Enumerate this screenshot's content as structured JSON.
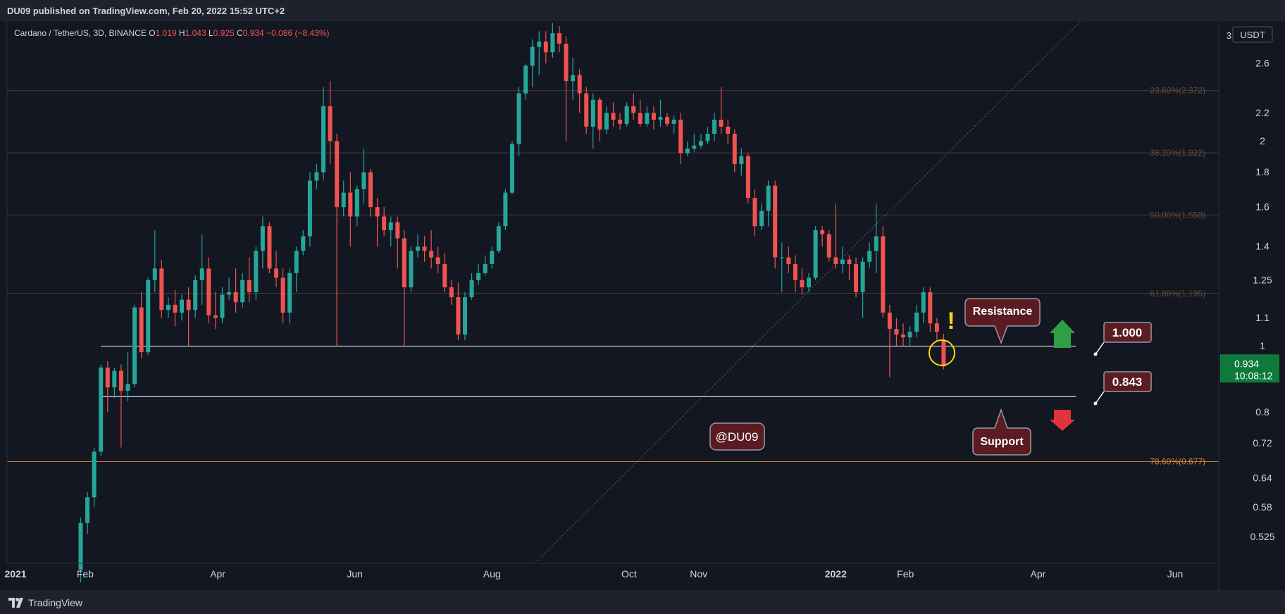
{
  "header": {
    "published": "DU09 published on TradingView.com, Feb 20, 2022 15:52 UTC+2"
  },
  "footer": {
    "brand": "TradingView"
  },
  "legend": {
    "symbol": "Cardano / TetherUS, 3D, BINANCE",
    "o_label": "O",
    "o": "1.019",
    "h_label": "H",
    "h": "1.043",
    "l_label": "L",
    "l": "0.925",
    "c_label": "C",
    "c": "0.934",
    "change": "−0.086 (−8.43%)"
  },
  "price_axis": {
    "unit": "USDT",
    "top_label": "3",
    "current_price": "0.934",
    "countdown": "10:08:12"
  },
  "colors": {
    "up": "#26a69a",
    "down": "#ef5350",
    "fib": "#7a5b3c",
    "fib_strong": "#d4862f",
    "callout_bg": "#5a1c22",
    "price_tag": "#0d7a3c"
  },
  "annotations": {
    "resistance_label": "Resistance",
    "support_label": "Support",
    "watermark": "@DU09",
    "level_1000": "1.000",
    "level_0843": "0.843",
    "exclamation": "!"
  },
  "chart_data": {
    "type": "candlestick",
    "symbol": "ADA/USDT",
    "interval": "3D",
    "y_scale": "log",
    "ylim": [
      0.48,
      3.0
    ],
    "y_ticks": [
      0.525,
      0.58,
      0.64,
      0.72,
      0.8,
      1.0,
      1.1,
      1.25,
      1.4,
      1.6,
      1.8,
      2.0,
      2.2,
      2.6
    ],
    "x_ticks": [
      {
        "label": "2021",
        "date": "2021-01-01"
      },
      {
        "label": "Feb",
        "date": "2021-02-01"
      },
      {
        "label": "Apr",
        "date": "2021-04-01"
      },
      {
        "label": "Jun",
        "date": "2021-06-01"
      },
      {
        "label": "Aug",
        "date": "2021-08-01"
      },
      {
        "label": "Oct",
        "date": "2021-10-01"
      },
      {
        "label": "Nov",
        "date": "2021-11-01"
      },
      {
        "label": "2022",
        "date": "2022-01-01"
      },
      {
        "label": "Feb",
        "date": "2022-02-01"
      },
      {
        "label": "Apr",
        "date": "2022-04-01"
      },
      {
        "label": "Jun",
        "date": "2022-06-01"
      }
    ],
    "fib_levels": [
      {
        "label": "23.60%(2.372)",
        "value": 2.372
      },
      {
        "label": "38.20%(1.922)",
        "value": 1.922
      },
      {
        "label": "50.00%(1.558)",
        "value": 1.558
      },
      {
        "label": "61.80%(1.195)",
        "value": 1.195
      },
      {
        "label": "78.60%(0.677)",
        "value": 0.677
      }
    ],
    "horizontal_levels": [
      {
        "name": "Resistance",
        "value": 1.0
      },
      {
        "name": "Support",
        "value": 0.843
      }
    ],
    "trendline": {
      "start": {
        "date": "2021-08-20",
        "value": 0.48
      },
      "end": {
        "date": "2022-04-20",
        "value": 3.0
      }
    },
    "candles": [
      {
        "d": "2021-01-30",
        "o": 0.47,
        "h": 0.56,
        "l": 0.45,
        "c": 0.55
      },
      {
        "d": "2021-02-02",
        "o": 0.55,
        "h": 0.61,
        "l": 0.53,
        "c": 0.6
      },
      {
        "d": "2021-02-05",
        "o": 0.6,
        "h": 0.71,
        "l": 0.58,
        "c": 0.7
      },
      {
        "d": "2021-02-08",
        "o": 0.7,
        "h": 0.94,
        "l": 0.69,
        "c": 0.93
      },
      {
        "d": "2021-02-11",
        "o": 0.93,
        "h": 0.95,
        "l": 0.8,
        "c": 0.87
      },
      {
        "d": "2021-02-14",
        "o": 0.87,
        "h": 0.93,
        "l": 0.84,
        "c": 0.92
      },
      {
        "d": "2021-02-17",
        "o": 0.92,
        "h": 0.94,
        "l": 0.71,
        "c": 0.86
      },
      {
        "d": "2021-02-20",
        "o": 0.86,
        "h": 0.98,
        "l": 0.83,
        "c": 0.88
      },
      {
        "d": "2021-02-23",
        "o": 0.88,
        "h": 1.15,
        "l": 0.87,
        "c": 1.14
      },
      {
        "d": "2021-02-26",
        "o": 1.14,
        "h": 1.2,
        "l": 0.96,
        "c": 0.98
      },
      {
        "d": "2021-03-01",
        "o": 0.98,
        "h": 1.26,
        "l": 0.97,
        "c": 1.25
      },
      {
        "d": "2021-03-04",
        "o": 1.25,
        "h": 1.48,
        "l": 1.2,
        "c": 1.3
      },
      {
        "d": "2021-03-07",
        "o": 1.3,
        "h": 1.34,
        "l": 1.1,
        "c": 1.13
      },
      {
        "d": "2021-03-10",
        "o": 1.13,
        "h": 1.18,
        "l": 1.1,
        "c": 1.15
      },
      {
        "d": "2021-03-13",
        "o": 1.15,
        "h": 1.21,
        "l": 1.07,
        "c": 1.12
      },
      {
        "d": "2021-03-16",
        "o": 1.12,
        "h": 1.19,
        "l": 1.09,
        "c": 1.17
      },
      {
        "d": "2021-03-19",
        "o": 1.17,
        "h": 1.22,
        "l": 1.0,
        "c": 1.13
      },
      {
        "d": "2021-03-22",
        "o": 1.13,
        "h": 1.27,
        "l": 1.1,
        "c": 1.25
      },
      {
        "d": "2021-03-25",
        "o": 1.25,
        "h": 1.46,
        "l": 1.15,
        "c": 1.3
      },
      {
        "d": "2021-03-28",
        "o": 1.3,
        "h": 1.35,
        "l": 1.08,
        "c": 1.11
      },
      {
        "d": "2021-03-31",
        "o": 1.11,
        "h": 1.2,
        "l": 1.06,
        "c": 1.1
      },
      {
        "d": "2021-04-03",
        "o": 1.1,
        "h": 1.22,
        "l": 1.08,
        "c": 1.19
      },
      {
        "d": "2021-04-06",
        "o": 1.19,
        "h": 1.26,
        "l": 1.17,
        "c": 1.2
      },
      {
        "d": "2021-04-09",
        "o": 1.2,
        "h": 1.3,
        "l": 1.12,
        "c": 1.16
      },
      {
        "d": "2021-04-12",
        "o": 1.16,
        "h": 1.28,
        "l": 1.14,
        "c": 1.25
      },
      {
        "d": "2021-04-15",
        "o": 1.25,
        "h": 1.35,
        "l": 1.16,
        "c": 1.2
      },
      {
        "d": "2021-04-18",
        "o": 1.2,
        "h": 1.4,
        "l": 1.17,
        "c": 1.38
      },
      {
        "d": "2021-04-21",
        "o": 1.38,
        "h": 1.55,
        "l": 1.3,
        "c": 1.5
      },
      {
        "d": "2021-04-24",
        "o": 1.5,
        "h": 1.52,
        "l": 1.28,
        "c": 1.3
      },
      {
        "d": "2021-04-27",
        "o": 1.3,
        "h": 1.38,
        "l": 1.22,
        "c": 1.26
      },
      {
        "d": "2021-04-30",
        "o": 1.26,
        "h": 1.3,
        "l": 1.08,
        "c": 1.12
      },
      {
        "d": "2021-05-03",
        "o": 1.12,
        "h": 1.3,
        "l": 1.08,
        "c": 1.28
      },
      {
        "d": "2021-05-06",
        "o": 1.28,
        "h": 1.4,
        "l": 1.2,
        "c": 1.38
      },
      {
        "d": "2021-05-09",
        "o": 1.38,
        "h": 1.48,
        "l": 1.36,
        "c": 1.45
      },
      {
        "d": "2021-05-12",
        "o": 1.45,
        "h": 1.8,
        "l": 1.4,
        "c": 1.75
      },
      {
        "d": "2021-05-15",
        "o": 1.75,
        "h": 1.85,
        "l": 1.7,
        "c": 1.8
      },
      {
        "d": "2021-05-18",
        "o": 1.8,
        "h": 2.4,
        "l": 1.75,
        "c": 2.25
      },
      {
        "d": "2021-05-21",
        "o": 2.25,
        "h": 2.45,
        "l": 1.85,
        "c": 2.0
      },
      {
        "d": "2021-05-24",
        "o": 2.0,
        "h": 2.05,
        "l": 1.0,
        "c": 1.6
      },
      {
        "d": "2021-05-27",
        "o": 1.6,
        "h": 1.75,
        "l": 1.55,
        "c": 1.68
      },
      {
        "d": "2021-05-30",
        "o": 1.68,
        "h": 1.8,
        "l": 1.4,
        "c": 1.55
      },
      {
        "d": "2021-06-02",
        "o": 1.55,
        "h": 1.72,
        "l": 1.5,
        "c": 1.7
      },
      {
        "d": "2021-06-05",
        "o": 1.7,
        "h": 1.95,
        "l": 1.62,
        "c": 1.8
      },
      {
        "d": "2021-06-08",
        "o": 1.8,
        "h": 1.82,
        "l": 1.55,
        "c": 1.6
      },
      {
        "d": "2021-06-11",
        "o": 1.6,
        "h": 1.65,
        "l": 1.4,
        "c": 1.55
      },
      {
        "d": "2021-06-14",
        "o": 1.55,
        "h": 1.6,
        "l": 1.45,
        "c": 1.48
      },
      {
        "d": "2021-06-17",
        "o": 1.48,
        "h": 1.55,
        "l": 1.4,
        "c": 1.52
      },
      {
        "d": "2021-06-20",
        "o": 1.52,
        "h": 1.55,
        "l": 1.3,
        "c": 1.44
      },
      {
        "d": "2021-06-23",
        "o": 1.44,
        "h": 1.48,
        "l": 1.0,
        "c": 1.22
      },
      {
        "d": "2021-06-26",
        "o": 1.22,
        "h": 1.4,
        "l": 1.2,
        "c": 1.38
      },
      {
        "d": "2021-06-29",
        "o": 1.38,
        "h": 1.46,
        "l": 1.35,
        "c": 1.4
      },
      {
        "d": "2021-07-02",
        "o": 1.4,
        "h": 1.45,
        "l": 1.33,
        "c": 1.38
      },
      {
        "d": "2021-07-05",
        "o": 1.38,
        "h": 1.48,
        "l": 1.3,
        "c": 1.35
      },
      {
        "d": "2021-07-08",
        "o": 1.35,
        "h": 1.4,
        "l": 1.28,
        "c": 1.32
      },
      {
        "d": "2021-07-11",
        "o": 1.32,
        "h": 1.37,
        "l": 1.2,
        "c": 1.22
      },
      {
        "d": "2021-07-14",
        "o": 1.22,
        "h": 1.25,
        "l": 1.15,
        "c": 1.18
      },
      {
        "d": "2021-07-17",
        "o": 1.18,
        "h": 1.24,
        "l": 1.02,
        "c": 1.04
      },
      {
        "d": "2021-07-20",
        "o": 1.04,
        "h": 1.2,
        "l": 1.02,
        "c": 1.18
      },
      {
        "d": "2021-07-23",
        "o": 1.18,
        "h": 1.28,
        "l": 1.17,
        "c": 1.25
      },
      {
        "d": "2021-07-26",
        "o": 1.25,
        "h": 1.32,
        "l": 1.23,
        "c": 1.28
      },
      {
        "d": "2021-07-29",
        "o": 1.28,
        "h": 1.36,
        "l": 1.27,
        "c": 1.32
      },
      {
        "d": "2021-08-01",
        "o": 1.32,
        "h": 1.4,
        "l": 1.3,
        "c": 1.38
      },
      {
        "d": "2021-08-04",
        "o": 1.38,
        "h": 1.52,
        "l": 1.37,
        "c": 1.5
      },
      {
        "d": "2021-08-07",
        "o": 1.5,
        "h": 1.7,
        "l": 1.48,
        "c": 1.68
      },
      {
        "d": "2021-08-10",
        "o": 1.68,
        "h": 2.0,
        "l": 1.67,
        "c": 1.98
      },
      {
        "d": "2021-08-13",
        "o": 1.98,
        "h": 2.4,
        "l": 1.9,
        "c": 2.35
      },
      {
        "d": "2021-08-16",
        "o": 2.35,
        "h": 2.6,
        "l": 2.3,
        "c": 2.58
      },
      {
        "d": "2021-08-19",
        "o": 2.58,
        "h": 2.82,
        "l": 2.4,
        "c": 2.75
      },
      {
        "d": "2021-08-22",
        "o": 2.75,
        "h": 2.9,
        "l": 2.5,
        "c": 2.8
      },
      {
        "d": "2021-08-25",
        "o": 2.8,
        "h": 2.9,
        "l": 2.6,
        "c": 2.7
      },
      {
        "d": "2021-08-28",
        "o": 2.7,
        "h": 2.98,
        "l": 2.65,
        "c": 2.88
      },
      {
        "d": "2021-08-31",
        "o": 2.88,
        "h": 2.95,
        "l": 2.7,
        "c": 2.78
      },
      {
        "d": "2021-09-03",
        "o": 2.78,
        "h": 2.85,
        "l": 2.0,
        "c": 2.45
      },
      {
        "d": "2021-09-06",
        "o": 2.45,
        "h": 2.65,
        "l": 2.3,
        "c": 2.5
      },
      {
        "d": "2021-09-09",
        "o": 2.5,
        "h": 2.55,
        "l": 2.2,
        "c": 2.35
      },
      {
        "d": "2021-09-12",
        "o": 2.35,
        "h": 2.4,
        "l": 2.05,
        "c": 2.1
      },
      {
        "d": "2021-09-15",
        "o": 2.1,
        "h": 2.35,
        "l": 1.95,
        "c": 2.3
      },
      {
        "d": "2021-09-18",
        "o": 2.3,
        "h": 2.32,
        "l": 2.0,
        "c": 2.08
      },
      {
        "d": "2021-09-21",
        "o": 2.08,
        "h": 2.25,
        "l": 2.05,
        "c": 2.2
      },
      {
        "d": "2021-09-24",
        "o": 2.2,
        "h": 2.28,
        "l": 2.1,
        "c": 2.15
      },
      {
        "d": "2021-09-27",
        "o": 2.15,
        "h": 2.2,
        "l": 2.08,
        "c": 2.12
      },
      {
        "d": "2021-09-30",
        "o": 2.12,
        "h": 2.28,
        "l": 2.1,
        "c": 2.25
      },
      {
        "d": "2021-10-03",
        "o": 2.25,
        "h": 2.35,
        "l": 2.15,
        "c": 2.2
      },
      {
        "d": "2021-10-06",
        "o": 2.2,
        "h": 2.3,
        "l": 2.1,
        "c": 2.12
      },
      {
        "d": "2021-10-09",
        "o": 2.12,
        "h": 2.25,
        "l": 2.1,
        "c": 2.2
      },
      {
        "d": "2021-10-12",
        "o": 2.2,
        "h": 2.25,
        "l": 2.08,
        "c": 2.15
      },
      {
        "d": "2021-10-15",
        "o": 2.15,
        "h": 2.3,
        "l": 2.1,
        "c": 2.17
      },
      {
        "d": "2021-10-18",
        "o": 2.17,
        "h": 2.2,
        "l": 2.1,
        "c": 2.12
      },
      {
        "d": "2021-10-21",
        "o": 2.12,
        "h": 2.18,
        "l": 2.05,
        "c": 2.15
      },
      {
        "d": "2021-10-24",
        "o": 2.15,
        "h": 2.2,
        "l": 1.85,
        "c": 1.92
      },
      {
        "d": "2021-10-27",
        "o": 1.92,
        "h": 2.0,
        "l": 1.9,
        "c": 1.95
      },
      {
        "d": "2021-10-30",
        "o": 1.95,
        "h": 2.05,
        "l": 1.93,
        "c": 1.97
      },
      {
        "d": "2021-11-02",
        "o": 1.97,
        "h": 2.05,
        "l": 1.95,
        "c": 2.0
      },
      {
        "d": "2021-11-05",
        "o": 2.0,
        "h": 2.1,
        "l": 1.98,
        "c": 2.05
      },
      {
        "d": "2021-11-08",
        "o": 2.05,
        "h": 2.2,
        "l": 2.0,
        "c": 2.15
      },
      {
        "d": "2021-11-11",
        "o": 2.15,
        "h": 2.4,
        "l": 2.05,
        "c": 2.1
      },
      {
        "d": "2021-11-14",
        "o": 2.1,
        "h": 2.15,
        "l": 1.98,
        "c": 2.05
      },
      {
        "d": "2021-11-17",
        "o": 2.05,
        "h": 2.08,
        "l": 1.8,
        "c": 1.85
      },
      {
        "d": "2021-11-20",
        "o": 1.85,
        "h": 1.95,
        "l": 1.78,
        "c": 1.9
      },
      {
        "d": "2021-11-23",
        "o": 1.9,
        "h": 1.92,
        "l": 1.62,
        "c": 1.65
      },
      {
        "d": "2021-11-26",
        "o": 1.65,
        "h": 1.7,
        "l": 1.45,
        "c": 1.5
      },
      {
        "d": "2021-11-29",
        "o": 1.5,
        "h": 1.62,
        "l": 1.48,
        "c": 1.58
      },
      {
        "d": "2021-12-02",
        "o": 1.58,
        "h": 1.75,
        "l": 1.5,
        "c": 1.72
      },
      {
        "d": "2021-12-05",
        "o": 1.72,
        "h": 1.75,
        "l": 1.3,
        "c": 1.35
      },
      {
        "d": "2021-12-08",
        "o": 1.35,
        "h": 1.42,
        "l": 1.2,
        "c": 1.35
      },
      {
        "d": "2021-12-11",
        "o": 1.35,
        "h": 1.4,
        "l": 1.28,
        "c": 1.32
      },
      {
        "d": "2021-12-14",
        "o": 1.32,
        "h": 1.36,
        "l": 1.2,
        "c": 1.25
      },
      {
        "d": "2021-12-17",
        "o": 1.25,
        "h": 1.3,
        "l": 1.19,
        "c": 1.22
      },
      {
        "d": "2021-12-20",
        "o": 1.22,
        "h": 1.28,
        "l": 1.2,
        "c": 1.26
      },
      {
        "d": "2021-12-23",
        "o": 1.26,
        "h": 1.5,
        "l": 1.25,
        "c": 1.48
      },
      {
        "d": "2021-12-26",
        "o": 1.48,
        "h": 1.5,
        "l": 1.4,
        "c": 1.46
      },
      {
        "d": "2021-12-29",
        "o": 1.46,
        "h": 1.48,
        "l": 1.33,
        "c": 1.35
      },
      {
        "d": "2022-01-01",
        "o": 1.35,
        "h": 1.62,
        "l": 1.3,
        "c": 1.32
      },
      {
        "d": "2022-01-04",
        "o": 1.32,
        "h": 1.4,
        "l": 1.28,
        "c": 1.34
      },
      {
        "d": "2022-01-07",
        "o": 1.34,
        "h": 1.36,
        "l": 1.25,
        "c": 1.32
      },
      {
        "d": "2022-01-10",
        "o": 1.32,
        "h": 1.35,
        "l": 1.18,
        "c": 1.2
      },
      {
        "d": "2022-01-13",
        "o": 1.2,
        "h": 1.35,
        "l": 1.1,
        "c": 1.33
      },
      {
        "d": "2022-01-16",
        "o": 1.33,
        "h": 1.42,
        "l": 1.3,
        "c": 1.38
      },
      {
        "d": "2022-01-19",
        "o": 1.38,
        "h": 1.62,
        "l": 1.28,
        "c": 1.45
      },
      {
        "d": "2022-01-22",
        "o": 1.45,
        "h": 1.5,
        "l": 1.1,
        "c": 1.12
      },
      {
        "d": "2022-01-25",
        "o": 1.12,
        "h": 1.15,
        "l": 0.9,
        "c": 1.06
      },
      {
        "d": "2022-01-28",
        "o": 1.06,
        "h": 1.1,
        "l": 1.0,
        "c": 1.04
      },
      {
        "d": "2022-01-31",
        "o": 1.04,
        "h": 1.08,
        "l": 1.0,
        "c": 1.03
      },
      {
        "d": "2022-02-03",
        "o": 1.03,
        "h": 1.07,
        "l": 1.0,
        "c": 1.05
      },
      {
        "d": "2022-02-06",
        "o": 1.05,
        "h": 1.15,
        "l": 1.03,
        "c": 1.12
      },
      {
        "d": "2022-02-09",
        "o": 1.12,
        "h": 1.22,
        "l": 1.08,
        "c": 1.2
      },
      {
        "d": "2022-02-12",
        "o": 1.2,
        "h": 1.22,
        "l": 1.05,
        "c": 1.08
      },
      {
        "d": "2022-02-15",
        "o": 1.08,
        "h": 1.1,
        "l": 1.02,
        "c": 1.05
      },
      {
        "d": "2022-02-18",
        "o": 1.019,
        "h": 1.043,
        "l": 0.925,
        "c": 0.934
      }
    ]
  }
}
